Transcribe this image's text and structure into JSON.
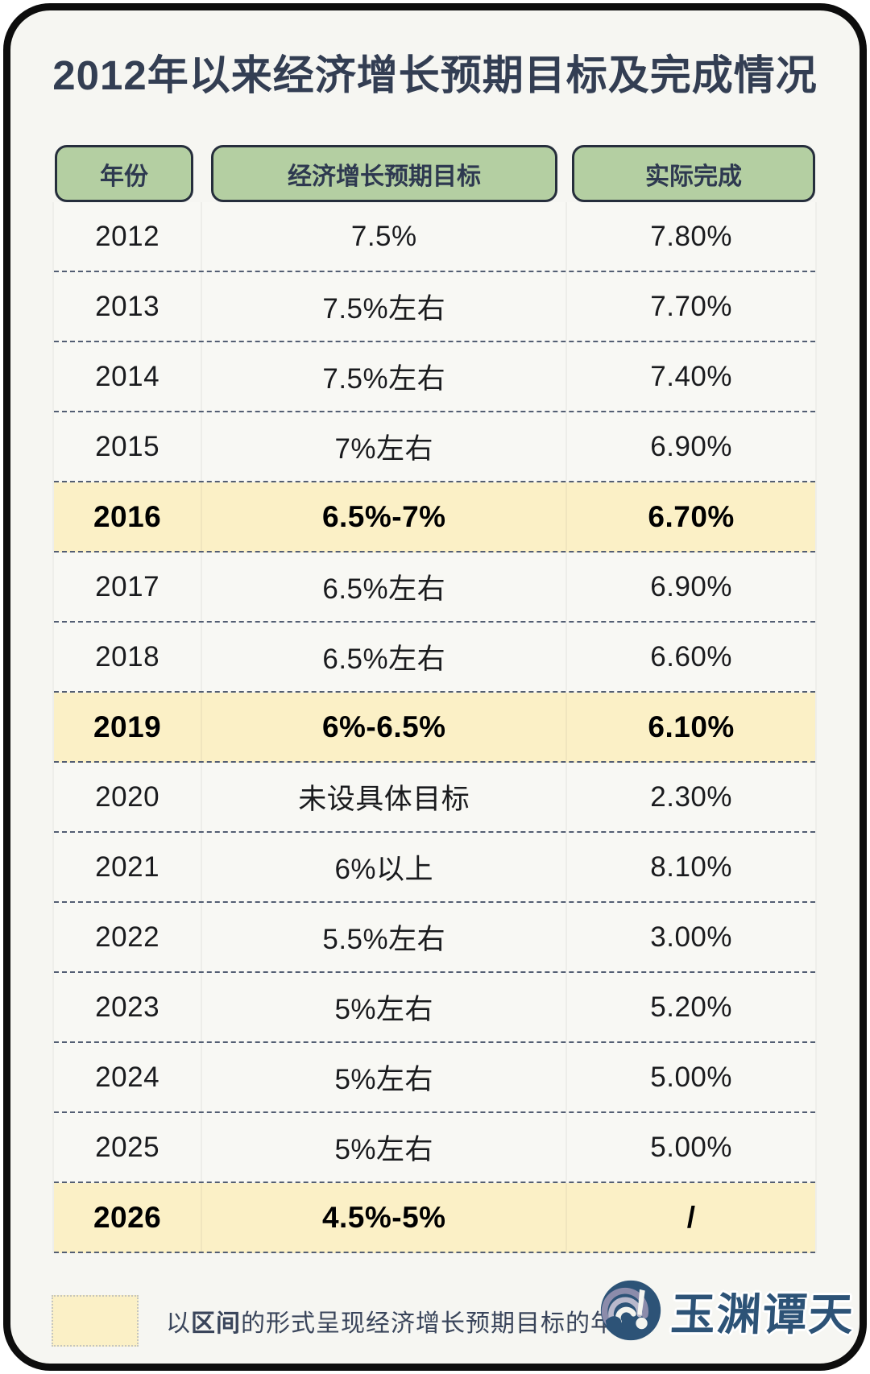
{
  "title": "2012年以来经济增长预期目标及完成情况",
  "chart_data": {
    "type": "table",
    "title": "2012年以来经济增长预期目标及完成情况",
    "columns": [
      "年份",
      "经济增长预期目标",
      "实际完成"
    ],
    "rows": [
      [
        "2012",
        "7.5%",
        "7.80%"
      ],
      [
        "2013",
        "7.5%左右",
        "7.70%"
      ],
      [
        "2014",
        "7.5%左右",
        "7.40%"
      ],
      [
        "2015",
        "7%左右",
        "6.90%"
      ],
      [
        "2016",
        "6.5%-7%",
        "6.70%"
      ],
      [
        "2017",
        "6.5%左右",
        "6.90%"
      ],
      [
        "2018",
        "6.5%左右",
        "6.60%"
      ],
      [
        "2019",
        "6%-6.5%",
        "6.10%"
      ],
      [
        "2020",
        "未设具体目标",
        "2.30%"
      ],
      [
        "2021",
        "6%以上",
        "8.10%"
      ],
      [
        "2022",
        "5.5%左右",
        "3.00%"
      ],
      [
        "2023",
        "5%左右",
        "5.20%"
      ],
      [
        "2024",
        "5%左右",
        "5.00%"
      ],
      [
        "2025",
        "5%左右",
        "5.00%"
      ],
      [
        "2026",
        "4.5%-5%",
        "/"
      ]
    ],
    "highlighted_years": [
      "2016",
      "2019",
      "2026"
    ],
    "legend_note": "以区间的形式呈现经济增长预期目标的年份"
  },
  "legend": {
    "prefix": "以",
    "bold": "区间",
    "suffix": "的形式呈现经济增长预期目标的年份"
  },
  "logo": {
    "text": "玉渊谭天"
  },
  "colors": {
    "header_green": "#b4cfa2",
    "highlight_yellow": "#fbf0c6",
    "title_navy": "#333e53",
    "dashed_line": "#535e73",
    "logo_blue": "#2d5377",
    "frame_black": "#0d0d0d",
    "card_bg": "#f6f6f2"
  }
}
